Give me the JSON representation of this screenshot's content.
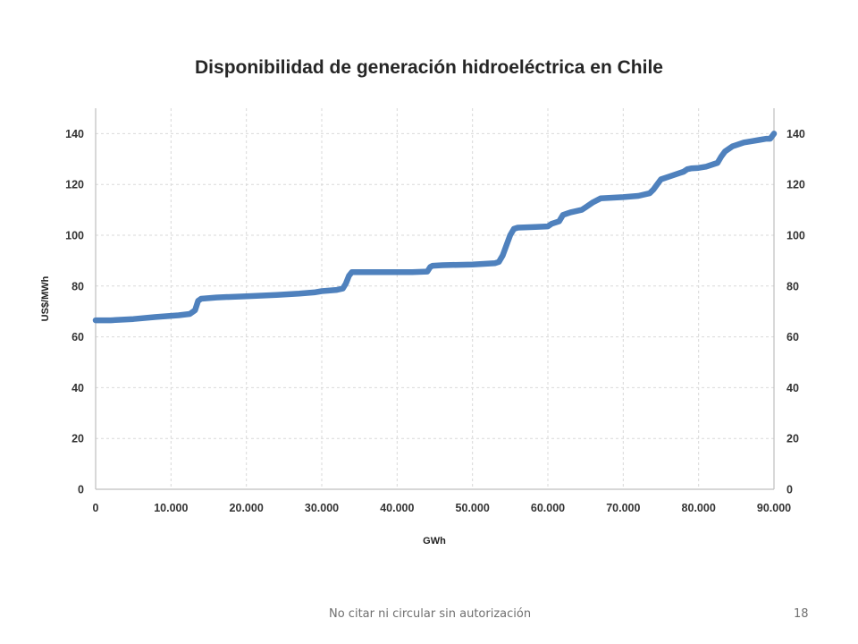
{
  "slide": {
    "footer_note": "No citar ni circular sin autorización",
    "page_number": "18"
  },
  "chart_data": {
    "type": "line",
    "title": "Disponibilidad de generación hidroeléctrica en Chile",
    "xlabel": "GWh",
    "ylabel": "US$/MWh",
    "xlim": [
      0,
      90000
    ],
    "ylim": [
      0,
      150
    ],
    "x_ticks": [
      0,
      10000,
      20000,
      30000,
      40000,
      50000,
      60000,
      70000,
      80000,
      90000
    ],
    "x_tick_labels": [
      "0",
      "10.000",
      "20.000",
      "30.000",
      "40.000",
      "50.000",
      "60.000",
      "70.000",
      "80.000",
      "90.000"
    ],
    "y_ticks": [
      0,
      20,
      40,
      60,
      80,
      100,
      120,
      140
    ],
    "y_tick_labels": [
      "0",
      "20",
      "40",
      "60",
      "80",
      "100",
      "120",
      "140"
    ],
    "y2_tick_labels": [
      "0",
      "20",
      "40",
      "60",
      "80",
      "100",
      "120",
      "140"
    ],
    "grid": "vertical and horizontal dashed",
    "legend": "none",
    "line_color": "#4f81bd",
    "series": [
      {
        "x": [
          0,
          2000,
          5000,
          8000,
          11000,
          12500,
          13200,
          13600,
          14000,
          16000,
          20000,
          24000,
          27000,
          29000,
          30000,
          32000,
          32800,
          33200,
          33600,
          34000,
          34500,
          38000,
          42000,
          44000,
          44400,
          44700,
          46000,
          50000,
          53000,
          53500,
          54000,
          54500,
          55000,
          55500,
          56000,
          58000,
          60000,
          60500,
          61500,
          62000,
          63000,
          64500,
          65000,
          66000,
          67000,
          70000,
          72000,
          73500,
          74000,
          74500,
          75000,
          76000,
          77000,
          78000,
          78500,
          79000,
          80000,
          81000,
          82000,
          82500,
          83000,
          83500,
          84000,
          84500,
          85000,
          86000,
          87000,
          88000,
          89000,
          89500,
          90000
        ],
        "y": [
          66.5,
          66.5,
          67,
          67.8,
          68.5,
          69,
          70.5,
          74.2,
          75,
          75.5,
          76,
          76.5,
          77,
          77.5,
          78,
          78.5,
          79,
          81,
          84,
          85.5,
          85.5,
          85.5,
          85.5,
          85.7,
          87.5,
          88,
          88.2,
          88.5,
          89,
          89.5,
          92,
          96,
          100,
          102.5,
          103,
          103.2,
          103.5,
          104.5,
          105.5,
          108,
          109,
          110,
          111,
          113,
          114.5,
          115,
          115.5,
          116.5,
          118,
          120,
          122,
          123,
          124,
          125,
          126,
          126.3,
          126.5,
          127,
          128,
          128.5,
          131,
          133,
          134,
          135,
          135.5,
          136.5,
          137,
          137.5,
          138,
          138,
          140
        ]
      }
    ]
  }
}
